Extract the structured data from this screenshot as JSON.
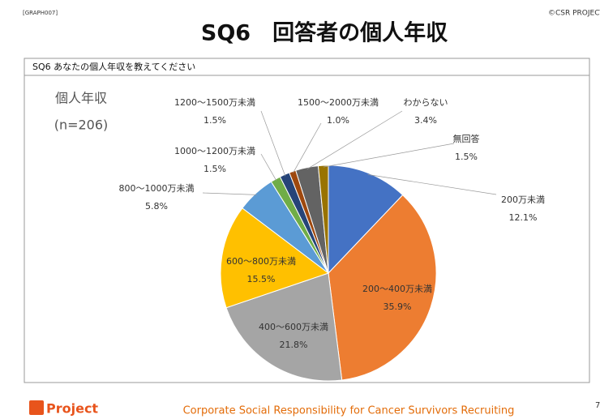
{
  "header": {
    "code": "[GRAPH007]",
    "copyright": "©CSR PROJECT",
    "title": "SQ6　回答者の個人年収"
  },
  "question": "SQ6  あなたの個人年収を教えてください",
  "chart_data": {
    "type": "pie",
    "title": "個人年収",
    "subtitle": "(n=206)",
    "categories": [
      "200万未満",
      "200～400万未満",
      "400～600万未満",
      "600～800万未満",
      "800～1000万未満",
      "1000～1200万未満",
      "1200～1500万未満",
      "1500～2000万未満",
      "わからない",
      "無回答"
    ],
    "values": [
      12.1,
      35.9,
      21.8,
      15.5,
      5.8,
      1.5,
      1.5,
      1.0,
      3.4,
      1.5
    ],
    "value_labels": [
      "12.1%",
      "35.9%",
      "21.8%",
      "15.5%",
      "5.8%",
      "1.5%",
      "1.5%",
      "1.0%",
      "3.4%",
      "1.5%"
    ],
    "colors": [
      "#4472c4",
      "#ed7d31",
      "#a5a5a5",
      "#ffc000",
      "#5b9bd5",
      "#70ad47",
      "#264478",
      "#9e480e",
      "#636363",
      "#997300"
    ]
  },
  "footer": {
    "logo": "Project",
    "tagline": "Corporate Social Responsibility for Cancer Survivors Recruiting",
    "page": "7"
  }
}
